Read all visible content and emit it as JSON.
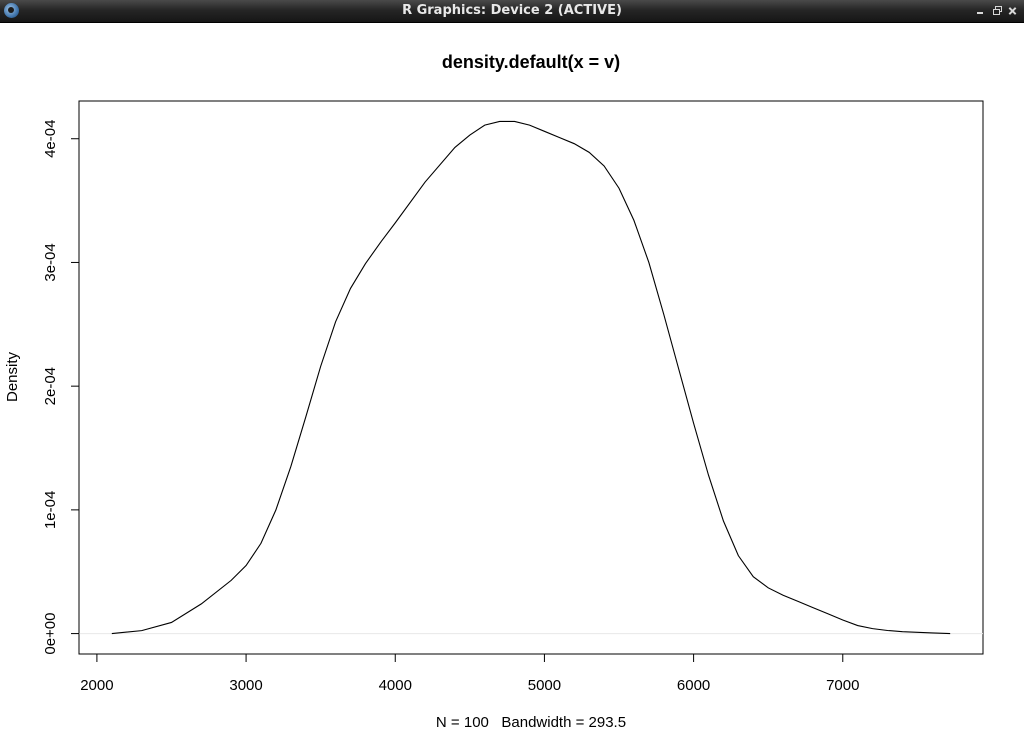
{
  "window": {
    "title": "R Graphics: Device 2 (ACTIVE)",
    "icons": [
      "r-logo-icon",
      "minimize-icon",
      "maximize-icon",
      "close-icon"
    ]
  },
  "chart_data": {
    "type": "line",
    "title": "density.default(x = v)",
    "xlabel": "N = 100   Bandwidth = 293.5",
    "ylabel": "Density",
    "xlim": [
      1880,
      7940
    ],
    "ylim": [
      -1.65e-05,
      0.0004305
    ],
    "x_ticks": [
      2000,
      3000,
      4000,
      5000,
      6000,
      7000
    ],
    "x_tick_labels": [
      "2000",
      "3000",
      "4000",
      "5000",
      "6000",
      "7000"
    ],
    "y_ticks": [
      0,
      0.0001,
      0.0002,
      0.0003,
      0.0004
    ],
    "y_tick_labels": [
      "0e+00",
      "1e-04",
      "2e-04",
      "3e-04",
      "4e-04"
    ],
    "grid": false,
    "baseline": 0,
    "series": [
      {
        "x": [
          2100,
          2300,
          2500,
          2700,
          2900,
          3000,
          3100,
          3200,
          3300,
          3400,
          3500,
          3600,
          3700,
          3800,
          3900,
          4000,
          4200,
          4400,
          4500,
          4600,
          4700,
          4800,
          4900,
          5000,
          5100,
          5200,
          5300,
          5400,
          5500,
          5600,
          5700,
          5800,
          5900,
          6000,
          6100,
          6200,
          6300,
          6400,
          6500,
          6600,
          6700,
          6800,
          6900,
          7000,
          7100,
          7200,
          7300,
          7400,
          7500,
          7600,
          7720
        ],
        "y": [
          0,
          2.4e-06,
          9e-06,
          2.4e-05,
          4.3e-05,
          5.5e-05,
          7.3e-05,
          0.0001,
          0.000135,
          0.000175,
          0.000216,
          0.000252,
          0.000279,
          0.000299,
          0.000316,
          0.000332,
          0.000365,
          0.000393,
          0.000403,
          0.000411,
          0.000414,
          0.000414,
          0.000411,
          0.000406,
          0.000401,
          0.000396,
          0.000389,
          0.000378,
          0.00036,
          0.000334,
          0.0003,
          0.000258,
          0.000214,
          0.00017,
          0.000128,
          9.1e-05,
          6.3e-05,
          4.6e-05,
          3.7e-05,
          3.1e-05,
          2.6e-05,
          2.1e-05,
          1.6e-05,
          1.1e-05,
          6.5e-06,
          4e-06,
          2.5e-06,
          1.5e-06,
          1e-06,
          5e-07,
          0
        ]
      }
    ]
  }
}
